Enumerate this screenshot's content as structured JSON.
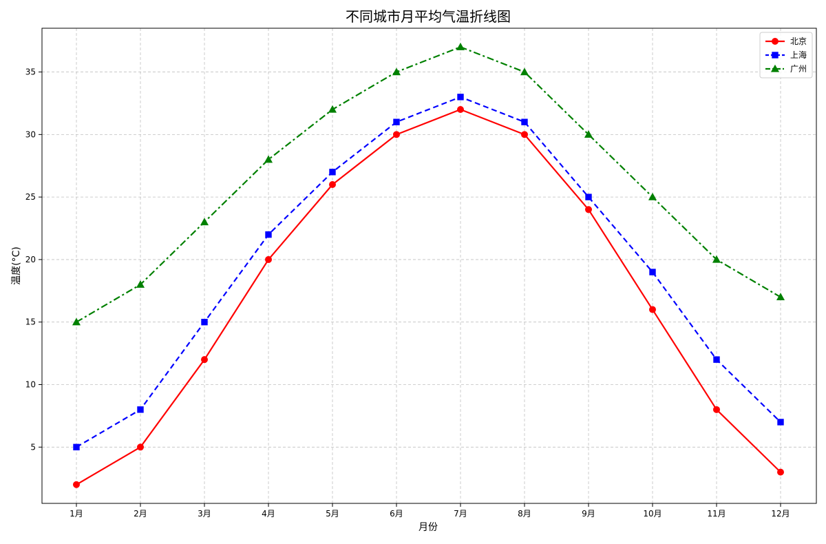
{
  "chart_data": {
    "type": "line",
    "title": "不同城市月平均气温折线图",
    "xlabel": "月份",
    "ylabel": "温度(°C)",
    "categories": [
      "1月",
      "2月",
      "3月",
      "4月",
      "5月",
      "6月",
      "7月",
      "8月",
      "9月",
      "10月",
      "11月",
      "12月"
    ],
    "ylim": [
      0.5,
      38.5
    ],
    "yticks": [
      5,
      10,
      15,
      20,
      25,
      30,
      35
    ],
    "grid": true,
    "legend_position": "top-right",
    "series": [
      {
        "name": "北京",
        "values": [
          2,
          5,
          12,
          20,
          26,
          30,
          32,
          30,
          24,
          16,
          8,
          3
        ],
        "color": "#ff0000",
        "line_style": "solid",
        "marker": "circle"
      },
      {
        "name": "上海",
        "values": [
          5,
          8,
          15,
          22,
          27,
          31,
          33,
          31,
          25,
          19,
          12,
          7
        ],
        "color": "#0000ff",
        "line_style": "dashed",
        "marker": "square"
      },
      {
        "name": "广州",
        "values": [
          15,
          18,
          23,
          28,
          32,
          35,
          37,
          35,
          30,
          25,
          20,
          17
        ],
        "color": "#008000",
        "line_style": "dashdot",
        "marker": "triangle"
      }
    ]
  }
}
